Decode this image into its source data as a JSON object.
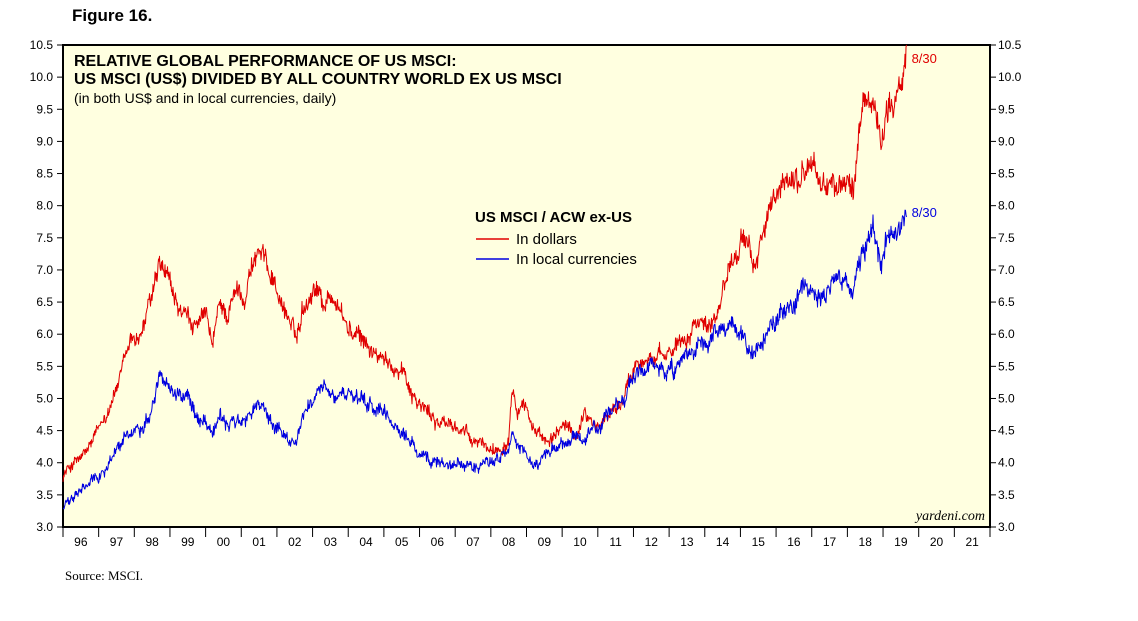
{
  "figure_label": "Figure 16.",
  "source": "Source: MSCI.",
  "chart_data": {
    "type": "line",
    "title": "RELATIVE GLOBAL PERFORMANCE OF US MSCI:",
    "title_line2": "US MSCI (US$) DIVIDED BY ALL COUNTRY WORLD EX US MSCI",
    "subtitle": "(in both US$ and in local currencies, daily)",
    "legend_title": "US MSCI / ACW ex-US",
    "brand": "yardeni.com",
    "ylim": [
      3.0,
      10.5
    ],
    "y_ticks": [
      3.0,
      3.5,
      4.0,
      4.5,
      5.0,
      5.5,
      6.0,
      6.5,
      7.0,
      7.5,
      8.0,
      8.5,
      9.0,
      9.5,
      10.0,
      10.5
    ],
    "y_tick_labels": [
      "3.0",
      "3.5",
      "4.0",
      "4.5",
      "5.0",
      "5.5",
      "6.0",
      "6.5",
      "7.0",
      "7.5",
      "8.0",
      "8.5",
      "9.0",
      "9.5",
      "10.0",
      "10.5"
    ],
    "xlim": [
      1996.0,
      2022.0
    ],
    "x_tick_labels": [
      "96",
      "97",
      "98",
      "99",
      "00",
      "01",
      "02",
      "03",
      "04",
      "05",
      "06",
      "07",
      "08",
      "09",
      "10",
      "11",
      "12",
      "13",
      "14",
      "15",
      "16",
      "17",
      "18",
      "19",
      "20",
      "21"
    ],
    "series": [
      {
        "name": "In dollars",
        "color": "#e00000",
        "end_label": "8/30",
        "x": [
          1996.0,
          1996.3,
          1996.6,
          1997.0,
          1997.3,
          1997.6,
          1997.9,
          1998.2,
          1998.5,
          1998.7,
          1998.9,
          1999.2,
          1999.5,
          1999.8,
          2000.0,
          2000.2,
          2000.4,
          2000.6,
          2000.9,
          2001.1,
          2001.3,
          2001.5,
          2001.7,
          2001.9,
          2002.1,
          2002.3,
          2002.55,
          2002.7,
          2002.9,
          2003.1,
          2003.3,
          2003.6,
          2003.9,
          2004.1,
          2004.4,
          2004.6,
          2004.9,
          2005.2,
          2005.5,
          2005.8,
          2006.0,
          2006.3,
          2006.6,
          2006.9,
          2007.2,
          2007.5,
          2007.8,
          2008.0,
          2008.3,
          2008.5,
          2008.6,
          2008.75,
          2008.9,
          2009.1,
          2009.3,
          2009.5,
          2009.7,
          2010.0,
          2010.2,
          2010.4,
          2010.6,
          2010.8,
          2011.0,
          2011.2,
          2011.4,
          2011.6,
          2011.8,
          2012.0,
          2012.3,
          2012.6,
          2012.9,
          2013.2,
          2013.5,
          2013.8,
          2014.1,
          2014.4,
          2014.6,
          2014.8,
          2015.0,
          2015.2,
          2015.4,
          2015.6,
          2015.8,
          2016.0,
          2016.3,
          2016.6,
          2016.8,
          2017.0,
          2017.2,
          2017.4,
          2017.6,
          2017.8,
          2018.0,
          2018.2,
          2018.4,
          2018.6,
          2018.8,
          2018.95,
          2019.1,
          2019.3,
          2019.5,
          2019.66
        ],
        "values": [
          3.8,
          4.0,
          4.1,
          4.5,
          4.9,
          5.3,
          5.9,
          6.0,
          6.6,
          7.0,
          6.9,
          6.4,
          6.2,
          6.1,
          6.3,
          5.8,
          6.5,
          6.3,
          6.7,
          6.6,
          7.1,
          7.3,
          7.1,
          6.9,
          6.5,
          6.3,
          5.9,
          6.4,
          6.6,
          6.8,
          6.5,
          6.6,
          6.2,
          6.0,
          5.9,
          5.8,
          5.6,
          5.5,
          5.5,
          5.1,
          4.9,
          4.75,
          4.6,
          4.6,
          4.5,
          4.3,
          4.3,
          4.2,
          4.25,
          4.4,
          5.3,
          4.9,
          5.0,
          4.7,
          4.4,
          4.3,
          4.3,
          4.6,
          4.5,
          4.4,
          4.8,
          4.7,
          4.55,
          4.7,
          4.8,
          4.9,
          5.1,
          5.5,
          5.7,
          5.6,
          5.6,
          5.9,
          6.0,
          6.3,
          6.1,
          6.5,
          6.9,
          7.3,
          7.5,
          7.3,
          7.0,
          7.6,
          7.9,
          8.0,
          8.4,
          8.4,
          8.5,
          8.7,
          8.4,
          8.3,
          8.4,
          8.2,
          8.4,
          8.3,
          9.4,
          9.7,
          9.5,
          9.0,
          9.6,
          9.6,
          9.8,
          10.3
        ]
      },
      {
        "name": "In local currencies",
        "color": "#0000e0",
        "end_label": "8/30",
        "x": [
          1996.0,
          1996.3,
          1996.6,
          1997.0,
          1997.3,
          1997.6,
          1997.9,
          1998.2,
          1998.5,
          1998.7,
          1998.9,
          1999.2,
          1999.5,
          1999.8,
          2000.0,
          2000.2,
          2000.4,
          2000.6,
          2000.9,
          2001.1,
          2001.3,
          2001.5,
          2001.7,
          2001.9,
          2002.1,
          2002.3,
          2002.55,
          2002.7,
          2002.9,
          2003.1,
          2003.3,
          2003.6,
          2003.9,
          2004.1,
          2004.4,
          2004.6,
          2004.9,
          2005.2,
          2005.5,
          2005.8,
          2006.0,
          2006.3,
          2006.6,
          2006.9,
          2007.2,
          2007.5,
          2007.8,
          2008.0,
          2008.3,
          2008.5,
          2008.6,
          2008.75,
          2008.9,
          2009.1,
          2009.3,
          2009.5,
          2009.7,
          2010.0,
          2010.2,
          2010.4,
          2010.6,
          2010.8,
          2011.0,
          2011.2,
          2011.4,
          2011.6,
          2011.8,
          2012.0,
          2012.3,
          2012.6,
          2012.9,
          2013.2,
          2013.5,
          2013.8,
          2014.1,
          2014.4,
          2014.6,
          2014.8,
          2015.0,
          2015.2,
          2015.4,
          2015.6,
          2015.8,
          2016.0,
          2016.3,
          2016.6,
          2016.8,
          2017.0,
          2017.2,
          2017.4,
          2017.6,
          2017.8,
          2018.0,
          2018.2,
          2018.4,
          2018.6,
          2018.8,
          2018.95,
          2019.1,
          2019.3,
          2019.5,
          2019.66
        ],
        "values": [
          3.3,
          3.45,
          3.6,
          3.8,
          4.0,
          4.3,
          4.5,
          4.55,
          4.9,
          5.35,
          5.3,
          5.1,
          5.0,
          4.7,
          4.7,
          4.5,
          4.7,
          4.55,
          4.7,
          4.6,
          4.8,
          4.9,
          4.8,
          4.6,
          4.5,
          4.4,
          4.3,
          4.7,
          4.9,
          5.1,
          5.1,
          5.0,
          5.1,
          5.0,
          4.9,
          4.9,
          4.8,
          4.6,
          4.5,
          4.3,
          4.1,
          4.0,
          4.05,
          4.0,
          3.95,
          3.95,
          4.0,
          4.05,
          4.1,
          4.2,
          4.4,
          4.2,
          4.2,
          4.0,
          3.95,
          4.1,
          4.15,
          4.25,
          4.3,
          4.35,
          4.3,
          4.5,
          4.55,
          4.7,
          4.8,
          4.9,
          5.05,
          5.3,
          5.5,
          5.5,
          5.4,
          5.4,
          5.6,
          5.8,
          5.8,
          6.0,
          6.0,
          6.2,
          6.0,
          5.8,
          5.6,
          5.9,
          6.0,
          6.2,
          6.4,
          6.6,
          6.8,
          6.55,
          6.6,
          6.55,
          6.7,
          6.75,
          6.8,
          6.9,
          7.3,
          7.5,
          7.5,
          6.9,
          7.5,
          7.6,
          7.8,
          7.9
        ]
      }
    ]
  }
}
